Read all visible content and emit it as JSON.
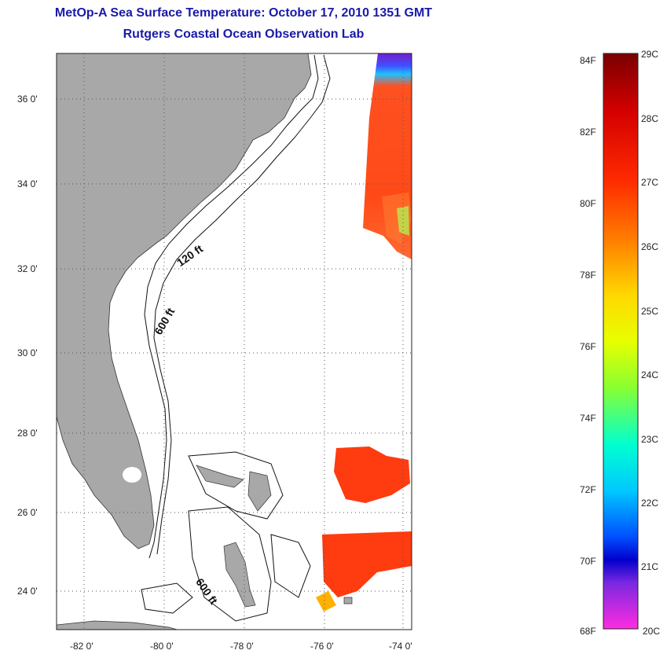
{
  "title": {
    "line1": "MetOp-A Sea Surface Temperature:  October 17, 2010 1351 GMT",
    "line2": "Rutgers Coastal Ocean Observation Lab"
  },
  "map": {
    "lat_ticks": [
      "36 0'",
      "34 0'",
      "32 0'",
      "30 0'",
      "28 0'",
      "26 0'",
      "24 0'"
    ],
    "lon_ticks": [
      "-82 0'",
      "-80 0'",
      "-78 0'",
      "-76 0'",
      "-74 0'"
    ],
    "contour_labels": [
      "120 ft",
      "600 ft",
      "600 ft"
    ],
    "colors": {
      "land": "#a8a8a8",
      "sst_warm": "#ff3b10"
    }
  },
  "colorbar": {
    "fahrenheit": [
      "84F",
      "82F",
      "80F",
      "78F",
      "76F",
      "74F",
      "72F",
      "70F",
      "68F"
    ],
    "celsius": [
      "29C",
      "28C",
      "27C",
      "26C",
      "25C",
      "24C",
      "23C",
      "22C",
      "21C",
      "20C"
    ]
  }
}
